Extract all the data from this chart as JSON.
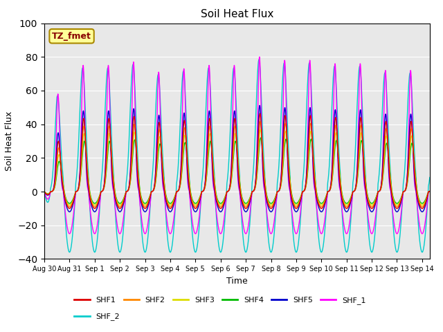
{
  "title": "Soil Heat Flux",
  "xlabel": "Time",
  "ylabel": "Soil Heat Flux",
  "ylim": [
    -40,
    100
  ],
  "yticks": [
    -40,
    -20,
    0,
    20,
    40,
    60,
    80,
    100
  ],
  "series_colors": {
    "SHF1": "#dd0000",
    "SHF2": "#ff8800",
    "SHF3": "#dddd00",
    "SHF4": "#00bb00",
    "SHF5": "#0000cc",
    "SHF_1": "#ff00ff",
    "SHF_2": "#00cccc"
  },
  "xtick_labels": [
    "Aug 30",
    "Aug 31",
    "Sep 1",
    "Sep 2",
    "Sep 3",
    "Sep 4",
    "Sep 5",
    "Sep 6",
    "Sep 7",
    "Sep 8",
    "Sep 9",
    "Sep 10",
    "Sep 11",
    "Sep 12",
    "Sep 13",
    "Sep 14"
  ],
  "annotation_text": "TZ_fmet",
  "annotation_bg": "#ffff99",
  "annotation_edge": "#aa8800",
  "plot_bg": "#e8e8e8",
  "fig_bg": "#ffffff",
  "linewidth": 1.0,
  "legend_ncol": 6
}
